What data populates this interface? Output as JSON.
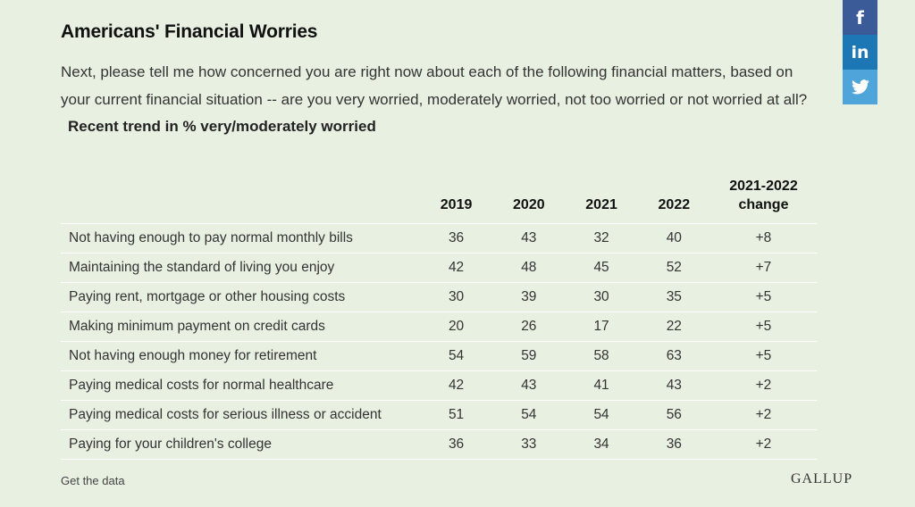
{
  "title": "Americans' Financial Worries",
  "question": "Next, please tell me how concerned you are right now about each of the following financial matters, based on your current financial situation -- are you very worried, moderately worried, not too worried or not worried at all?",
  "trend_label": "Recent trend in % very/moderately worried",
  "share": {
    "facebook": "f",
    "linkedin": "in",
    "twitter_icon": "twitter-bird-icon"
  },
  "footer": {
    "get_data": "Get the data",
    "logo": "GALLUP"
  },
  "colors": {
    "background": "#e8f0e2",
    "facebook": "#3b5a98",
    "linkedin": "#1d77b5",
    "twitter": "#4fa4d9"
  },
  "chart_data": {
    "type": "table",
    "title": "Americans' Financial Worries",
    "columns": [
      "",
      "2019",
      "2020",
      "2021",
      "2022",
      "2021-2022 change"
    ],
    "rows": [
      {
        "label": "Not having enough to pay normal monthly bills",
        "values": [
          "36",
          "43",
          "32",
          "40",
          "+8"
        ]
      },
      {
        "label": "Maintaining the standard of living you enjoy",
        "values": [
          "42",
          "48",
          "45",
          "52",
          "+7"
        ]
      },
      {
        "label": "Paying rent, mortgage or other housing costs",
        "values": [
          "30",
          "39",
          "30",
          "35",
          "+5"
        ]
      },
      {
        "label": "Making minimum payment on credit cards",
        "values": [
          "20",
          "26",
          "17",
          "22",
          "+5"
        ]
      },
      {
        "label": "Not having enough money for retirement",
        "values": [
          "54",
          "59",
          "58",
          "63",
          "+5"
        ]
      },
      {
        "label": "Paying medical costs for normal healthcare",
        "values": [
          "42",
          "43",
          "41",
          "43",
          "+2"
        ]
      },
      {
        "label": "Paying medical costs for serious illness or accident",
        "values": [
          "51",
          "54",
          "54",
          "56",
          "+2"
        ]
      },
      {
        "label": "Paying for your children's college",
        "values": [
          "36",
          "33",
          "34",
          "36",
          "+2"
        ]
      }
    ]
  }
}
